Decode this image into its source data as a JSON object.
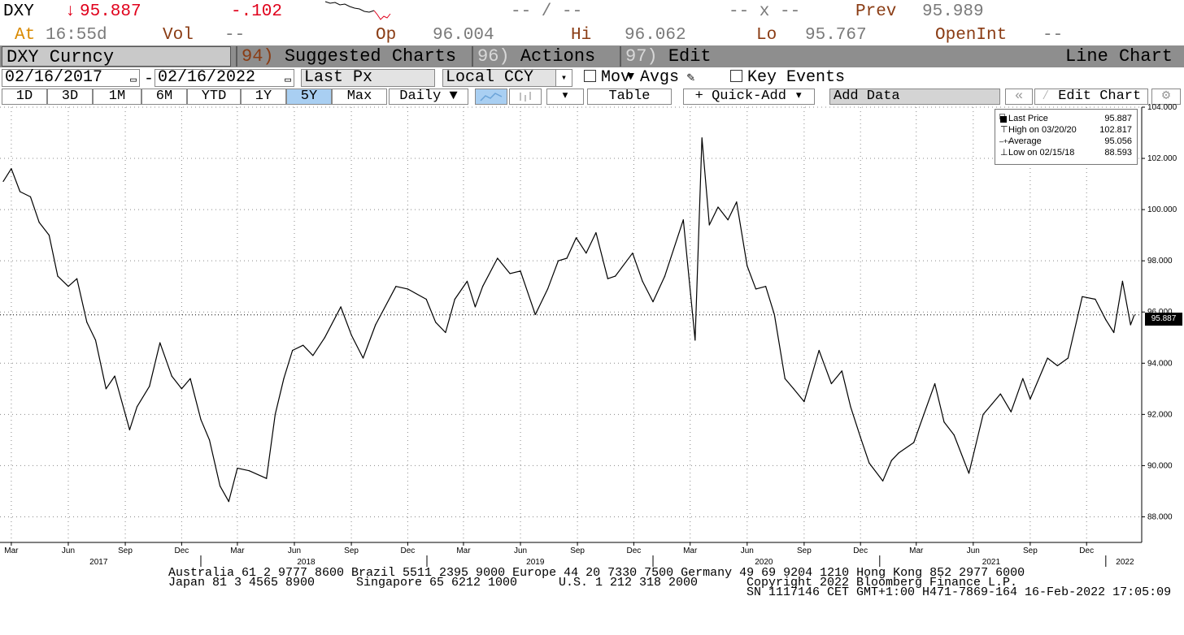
{
  "header": {
    "ticker": "DXY",
    "arrow": "↓",
    "last": "95.887",
    "change": "-.102",
    "bidask": "-- / --",
    "size": "-- x --",
    "prev_label": "Prev",
    "prev_value": "95.989",
    "at_label": "At",
    "time": "16:55",
    "time_suffix": "d",
    "vol_label": "Vol",
    "vol_value": "--",
    "op_label": "Op",
    "op_value": "96.004",
    "hi_label": "Hi",
    "hi_value": "96.062",
    "lo_label": "Lo",
    "lo_value": "95.767",
    "oi_label": "OpenInt",
    "oi_value": "--"
  },
  "titlebar": {
    "security": "DXY Curncy",
    "menu1_num": "94)",
    "menu1": "Suggested Charts",
    "menu2_num": "96)",
    "menu2": "Actions ▾",
    "menu3_num": "97)",
    "menu3": "Edit ▾",
    "chart_type": "Line Chart"
  },
  "controls": {
    "start_date": "02/16/2017",
    "end_date": "02/16/2022",
    "dash": "-",
    "field": "Last Px",
    "currency": "Local CCY",
    "mov_avgs": "Mov Avgs",
    "key_events": "Key Events",
    "periods": [
      "1D",
      "3D",
      "1M",
      "6M",
      "YTD",
      "1Y",
      "5Y",
      "Max"
    ],
    "selected_period": "5Y",
    "frequency": "Daily ▼",
    "table": "Table",
    "quick_add": "+ Quick-Add ▾",
    "add_data": "Add Data",
    "edit_chart": "Edit Chart"
  },
  "legend": {
    "last_label": "Last Price",
    "last_value": "95.887",
    "high_label": "High on 03/20/20",
    "high_value": "102.817",
    "avg_label": "Average",
    "avg_value": "95.056",
    "low_label": "Low on 02/15/18",
    "low_value": "88.593"
  },
  "chart_data": {
    "type": "line",
    "series": [
      {
        "name": "Last Price",
        "x": [
          "2017-02-16",
          "2017-03-01",
          "2017-03-15",
          "2017-04-01",
          "2017-04-15",
          "2017-05-01",
          "2017-05-15",
          "2017-06-01",
          "2017-06-15",
          "2017-07-01",
          "2017-07-15",
          "2017-08-01",
          "2017-08-15",
          "2017-09-08",
          "2017-09-20",
          "2017-10-10",
          "2017-10-27",
          "2017-11-15",
          "2017-12-01",
          "2017-12-15",
          "2018-01-01",
          "2018-01-15",
          "2018-02-01",
          "2018-02-15",
          "2018-03-01",
          "2018-03-20",
          "2018-04-17",
          "2018-05-01",
          "2018-05-15",
          "2018-05-29",
          "2018-06-15",
          "2018-07-01",
          "2018-07-20",
          "2018-08-15",
          "2018-09-01",
          "2018-09-20",
          "2018-10-10",
          "2018-11-12",
          "2018-12-01",
          "2018-12-31",
          "2019-01-15",
          "2019-01-31",
          "2019-02-15",
          "2019-03-07",
          "2019-03-20",
          "2019-04-01",
          "2019-04-25",
          "2019-05-15",
          "2019-06-01",
          "2019-06-25",
          "2019-07-15",
          "2019-08-01",
          "2019-08-15",
          "2019-08-30",
          "2019-09-15",
          "2019-10-01",
          "2019-10-20",
          "2019-11-01",
          "2019-11-29",
          "2019-12-15",
          "2020-01-01",
          "2020-01-20",
          "2020-02-19",
          "2020-03-09",
          "2020-03-20",
          "2020-04-01",
          "2020-04-15",
          "2020-05-01",
          "2020-05-15",
          "2020-06-01",
          "2020-06-15",
          "2020-07-01",
          "2020-07-15",
          "2020-08-01",
          "2020-08-15",
          "2020-09-01",
          "2020-09-25",
          "2020-10-15",
          "2020-11-01",
          "2020-11-15",
          "2020-12-01",
          "2020-12-15",
          "2021-01-06",
          "2021-01-20",
          "2021-02-01",
          "2021-02-25",
          "2021-03-31",
          "2021-04-15",
          "2021-05-01",
          "2021-05-25",
          "2021-06-17",
          "2021-07-01",
          "2021-07-15",
          "2021-08-01",
          "2021-08-20",
          "2021-09-01",
          "2021-09-29",
          "2021-10-15",
          "2021-11-01",
          "2021-11-24",
          "2021-12-15",
          "2022-01-01",
          "2022-01-14",
          "2022-01-28",
          "2022-02-10",
          "2022-02-16"
        ],
        "y": [
          101.1,
          101.6,
          100.7,
          100.5,
          99.5,
          99.0,
          97.4,
          97.0,
          97.3,
          95.6,
          94.9,
          93.0,
          93.5,
          91.4,
          92.3,
          93.1,
          94.8,
          93.5,
          93.0,
          93.4,
          91.8,
          91.0,
          89.2,
          88.6,
          89.9,
          89.8,
          89.5,
          92.0,
          93.4,
          94.5,
          94.7,
          94.3,
          95.0,
          96.2,
          95.1,
          94.2,
          95.5,
          97.0,
          96.9,
          96.5,
          95.6,
          95.2,
          96.5,
          97.2,
          96.2,
          97.0,
          98.1,
          97.5,
          97.6,
          95.9,
          96.9,
          98.0,
          98.1,
          98.9,
          98.3,
          99.1,
          97.3,
          97.4,
          98.3,
          97.2,
          96.4,
          97.4,
          99.6,
          94.9,
          102.8,
          99.4,
          100.1,
          99.6,
          100.3,
          97.8,
          96.9,
          97.0,
          95.9,
          93.4,
          93.0,
          92.5,
          94.5,
          93.2,
          93.7,
          92.3,
          91.1,
          90.1,
          89.4,
          90.2,
          90.5,
          90.9,
          93.2,
          91.7,
          91.2,
          89.7,
          92.0,
          92.4,
          92.8,
          92.1,
          93.4,
          92.6,
          94.2,
          93.9,
          94.2,
          96.6,
          96.5,
          95.7,
          95.2,
          97.2,
          95.5,
          95.887
        ]
      }
    ],
    "xaxis_months": [
      "Mar",
      "Jun",
      "Sep",
      "Dec",
      "Mar",
      "Jun",
      "Sep",
      "Dec",
      "Mar",
      "Jun",
      "Sep",
      "Dec",
      "Mar",
      "Jun",
      "Sep",
      "Dec",
      "Mar",
      "Jun",
      "Sep",
      "Dec"
    ],
    "xaxis_years": [
      "2017",
      "2018",
      "2019",
      "2020",
      "2021",
      "2022"
    ],
    "yticks": [
      "88.000",
      "90.000",
      "92.000",
      "94.000",
      "96.000",
      "98.000",
      "100.000",
      "102.000",
      "104.000"
    ],
    "ylim": [
      87,
      104
    ],
    "grid": true,
    "legend_position": "top-right",
    "last_value_label": "95.887"
  },
  "footer": {
    "line1": "Australia 61 2 9777 8600 Brazil 5511 2395 9000 Europe 44 20 7330 7500 Germany 49 69 9204 1210 Hong Kong 852 2977 6000",
    "line2a": "Japan 81 3 4565 8900",
    "line2b": "Singapore 65 6212 1000",
    "line2c": "U.S. 1 212 318 2000",
    "line2d": "Copyright 2022 Bloomberg Finance L.P.",
    "line3": "SN 1117146 CET  GMT+1:00 H471-7869-164 16-Feb-2022 17:05:09"
  },
  "colors": {
    "price_red": "#e0001b",
    "label_orange": "#d98a00",
    "label_brown": "#8a3c14",
    "titlebar_grey": "#8e8e8e",
    "selected_blue": "#a9cff2"
  }
}
